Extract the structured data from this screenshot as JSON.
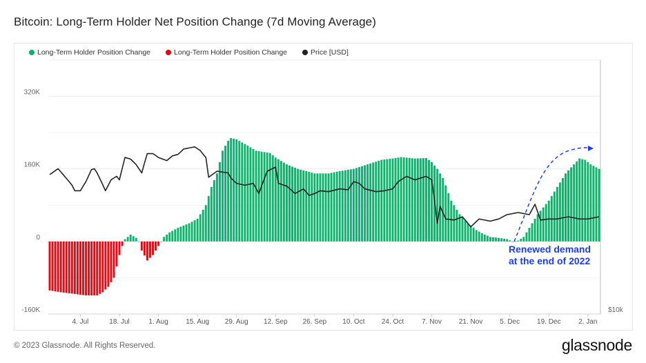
{
  "header": {
    "title": "Bitcoin: Long-Term Holder Net Position Change (7d Moving Average)"
  },
  "footer": {
    "copyright": "© 2023 Glassnode. All Rights Reserved.",
    "logo": "glassnode"
  },
  "annotation": {
    "line1": "Renewed demand",
    "line2": "at the end of 2022"
  },
  "colors": {
    "positive": "#0cb36a",
    "negative": "#f0050f",
    "price": "#222222",
    "annotation": "#1a3cff"
  },
  "chart_data": {
    "type": "bar",
    "title": "Bitcoin: Long-Term Holder Net Position Change (7d Moving Average)",
    "legend": [
      {
        "label": "Long-Term Holder Position Change",
        "color": "#0cb36a"
      },
      {
        "label": "Long-Term Holder Position Change",
        "color": "#f0050f"
      },
      {
        "label": "Price [USD]",
        "color": "#222222"
      }
    ],
    "legend_placement": "top-left",
    "start_date": "2022-06-23",
    "end_date": "2023-01-06",
    "y_left": {
      "ticks": [
        "320K",
        "160K",
        "0",
        "-160K"
      ],
      "tick_values": [
        320,
        160,
        0,
        -160
      ],
      "range": [
        -160,
        400
      ],
      "unit": "K BTC"
    },
    "y_right": {
      "ticks": [
        "$10k"
      ],
      "tick_values": [
        10000
      ],
      "range": [
        10000,
        40000
      ],
      "scale": "log"
    },
    "x_ticks": [
      {
        "label": "4. Jul",
        "date": "2022-07-04"
      },
      {
        "label": "18. Jul",
        "date": "2022-07-18"
      },
      {
        "label": "1. Aug",
        "date": "2022-08-01"
      },
      {
        "label": "15. Aug",
        "date": "2022-08-15"
      },
      {
        "label": "29. Aug",
        "date": "2022-08-29"
      },
      {
        "label": "12. Sep",
        "date": "2022-09-12"
      },
      {
        "label": "26. Sep",
        "date": "2022-09-26"
      },
      {
        "label": "10. Oct",
        "date": "2022-10-10"
      },
      {
        "label": "24. Oct",
        "date": "2022-10-24"
      },
      {
        "label": "7. Nov",
        "date": "2022-11-07"
      },
      {
        "label": "21. Nov",
        "date": "2022-11-21"
      },
      {
        "label": "5. Dec",
        "date": "2022-12-05"
      },
      {
        "label": "19. Dec",
        "date": "2022-12-19"
      },
      {
        "label": "2. Jan",
        "date": "2023-01-02"
      }
    ],
    "position_change_k": [
      [
        "2022-06-23",
        -108
      ],
      [
        "2022-06-27",
        -112
      ],
      [
        "2022-07-01",
        -115
      ],
      [
        "2022-07-06",
        -119
      ],
      [
        "2022-07-10",
        -119
      ],
      [
        "2022-07-12",
        -112
      ],
      [
        "2022-07-14",
        -100
      ],
      [
        "2022-07-16",
        -80
      ],
      [
        "2022-07-17",
        -55
      ],
      [
        "2022-07-18",
        -30
      ],
      [
        "2022-07-19",
        -10
      ],
      [
        "2022-07-20",
        5
      ],
      [
        "2022-07-22",
        15
      ],
      [
        "2022-07-24",
        8
      ],
      [
        "2022-07-25",
        0
      ],
      [
        "2022-07-26",
        -20
      ],
      [
        "2022-07-28",
        -42
      ],
      [
        "2022-07-30",
        -30
      ],
      [
        "2022-08-01",
        -10
      ],
      [
        "2022-08-02",
        0
      ],
      [
        "2022-08-03",
        10
      ],
      [
        "2022-08-05",
        20
      ],
      [
        "2022-08-08",
        30
      ],
      [
        "2022-08-12",
        40
      ],
      [
        "2022-08-15",
        50
      ],
      [
        "2022-08-18",
        80
      ],
      [
        "2022-08-20",
        120
      ],
      [
        "2022-08-22",
        150
      ],
      [
        "2022-08-24",
        200
      ],
      [
        "2022-08-26",
        222
      ],
      [
        "2022-08-27",
        228
      ],
      [
        "2022-08-29",
        225
      ],
      [
        "2022-09-01",
        215
      ],
      [
        "2022-09-05",
        200
      ],
      [
        "2022-09-10",
        195
      ],
      [
        "2022-09-12",
        185
      ],
      [
        "2022-09-16",
        170
      ],
      [
        "2022-09-20",
        160
      ],
      [
        "2022-09-26",
        150
      ],
      [
        "2022-10-01",
        150
      ],
      [
        "2022-10-05",
        155
      ],
      [
        "2022-10-10",
        160
      ],
      [
        "2022-10-15",
        170
      ],
      [
        "2022-10-20",
        180
      ],
      [
        "2022-10-24",
        183
      ],
      [
        "2022-10-27",
        186
      ],
      [
        "2022-11-01",
        183
      ],
      [
        "2022-11-05",
        184
      ],
      [
        "2022-11-07",
        175
      ],
      [
        "2022-11-09",
        160
      ],
      [
        "2022-11-11",
        140
      ],
      [
        "2022-11-14",
        90
      ],
      [
        "2022-11-17",
        60
      ],
      [
        "2022-11-20",
        40
      ],
      [
        "2022-11-23",
        25
      ],
      [
        "2022-11-26",
        15
      ],
      [
        "2022-11-28",
        10
      ],
      [
        "2022-12-01",
        8
      ],
      [
        "2022-12-04",
        5
      ],
      [
        "2022-12-06",
        0
      ],
      [
        "2022-12-08",
        2
      ],
      [
        "2022-12-10",
        10
      ],
      [
        "2022-12-12",
        30
      ],
      [
        "2022-12-15",
        60
      ],
      [
        "2022-12-19",
        90
      ],
      [
        "2022-12-22",
        120
      ],
      [
        "2022-12-25",
        150
      ],
      [
        "2022-12-28",
        170
      ],
      [
        "2022-12-30",
        183
      ],
      [
        "2023-01-01",
        180
      ],
      [
        "2023-01-03",
        170
      ],
      [
        "2023-01-06",
        160
      ]
    ],
    "price_usd": [
      [
        "2022-06-23",
        21400
      ],
      [
        "2022-06-26",
        22100
      ],
      [
        "2022-07-01",
        20200
      ],
      [
        "2022-07-02",
        19600
      ],
      [
        "2022-07-04",
        19600
      ],
      [
        "2022-07-06",
        20600
      ],
      [
        "2022-07-08",
        22000
      ],
      [
        "2022-07-09",
        22100
      ],
      [
        "2022-07-10",
        21600
      ],
      [
        "2022-07-13",
        19600
      ],
      [
        "2022-07-15",
        20800
      ],
      [
        "2022-07-17",
        21200
      ],
      [
        "2022-07-18",
        20800
      ],
      [
        "2022-07-20",
        23500
      ],
      [
        "2022-07-22",
        23300
      ],
      [
        "2022-07-24",
        22600
      ],
      [
        "2022-07-26",
        21600
      ],
      [
        "2022-07-28",
        24000
      ],
      [
        "2022-07-30",
        24000
      ],
      [
        "2022-08-01",
        23500
      ],
      [
        "2022-08-04",
        23100
      ],
      [
        "2022-08-06",
        23700
      ],
      [
        "2022-08-08",
        23900
      ],
      [
        "2022-08-10",
        24600
      ],
      [
        "2022-08-14",
        24900
      ],
      [
        "2022-08-16",
        24400
      ],
      [
        "2022-08-18",
        23500
      ],
      [
        "2022-08-19",
        21100
      ],
      [
        "2022-08-22",
        21800
      ],
      [
        "2022-08-26",
        21600
      ],
      [
        "2022-08-27",
        21000
      ],
      [
        "2022-08-29",
        20400
      ],
      [
        "2022-09-01",
        20200
      ],
      [
        "2022-09-04",
        20400
      ],
      [
        "2022-09-06",
        19300
      ],
      [
        "2022-09-09",
        21800
      ],
      [
        "2022-09-12",
        22300
      ],
      [
        "2022-09-13",
        20400
      ],
      [
        "2022-09-16",
        20100
      ],
      [
        "2022-09-19",
        19300
      ],
      [
        "2022-09-22",
        19800
      ],
      [
        "2022-09-24",
        19100
      ],
      [
        "2022-09-26",
        19300
      ],
      [
        "2022-09-28",
        19600
      ],
      [
        "2022-10-01",
        19500
      ],
      [
        "2022-10-05",
        19800
      ],
      [
        "2022-10-08",
        19700
      ],
      [
        "2022-10-10",
        20600
      ],
      [
        "2022-10-12",
        20400
      ],
      [
        "2022-10-14",
        19800
      ],
      [
        "2022-10-18",
        19500
      ],
      [
        "2022-10-21",
        19600
      ],
      [
        "2022-10-24",
        19800
      ],
      [
        "2022-10-26",
        20600
      ],
      [
        "2022-10-29",
        21200
      ],
      [
        "2022-11-01",
        20800
      ],
      [
        "2022-11-05",
        21200
      ],
      [
        "2022-11-07",
        20800
      ],
      [
        "2022-11-09",
        16400
      ],
      [
        "2022-11-10",
        18000
      ],
      [
        "2022-11-12",
        16800
      ],
      [
        "2022-11-15",
        16700
      ],
      [
        "2022-11-18",
        17000
      ],
      [
        "2022-11-21",
        16100
      ],
      [
        "2022-11-24",
        16800
      ],
      [
        "2022-11-28",
        16600
      ],
      [
        "2022-12-01",
        16800
      ],
      [
        "2022-12-04",
        17200
      ],
      [
        "2022-12-08",
        17400
      ],
      [
        "2022-12-12",
        17200
      ],
      [
        "2022-12-14",
        18200
      ],
      [
        "2022-12-16",
        16700
      ],
      [
        "2022-12-19",
        16800
      ],
      [
        "2022-12-22",
        16800
      ],
      [
        "2022-12-26",
        17000
      ],
      [
        "2022-12-30",
        16800
      ],
      [
        "2023-01-02",
        16800
      ],
      [
        "2023-01-06",
        17000
      ]
    ]
  }
}
